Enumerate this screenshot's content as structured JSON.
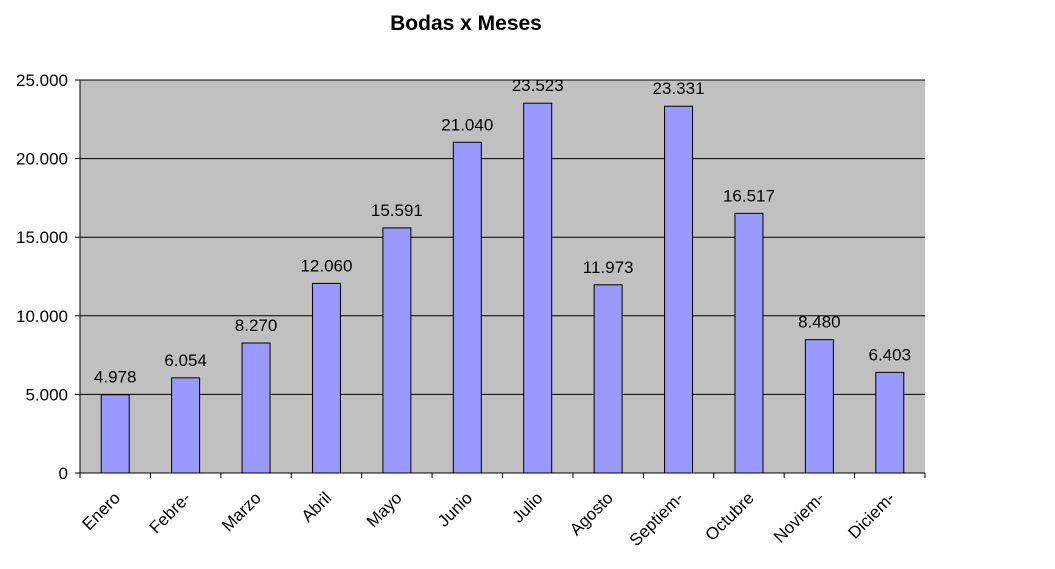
{
  "chart_data": {
    "type": "bar",
    "title": "Bodas x Meses",
    "categories": [
      "Enero",
      "Febre-",
      "Marzo",
      "Abril",
      "Mayo",
      "Junio",
      "Julio",
      "Agosto",
      "Septiem-",
      "Octubre",
      "Noviem-",
      "Diciem-"
    ],
    "values": [
      4978,
      6054,
      8270,
      12060,
      15591,
      21040,
      23523,
      11973,
      23331,
      16517,
      8480,
      6403
    ],
    "data_labels": [
      "4.978",
      "6.054",
      "8.270",
      "12.060",
      "15.591",
      "21.040",
      "23.523",
      "11.973",
      "23.331",
      "16.517",
      "8.480",
      "6.403"
    ],
    "y_ticks": [
      0,
      5000,
      10000,
      15000,
      20000,
      25000
    ],
    "y_tick_labels": [
      "0",
      "5.000",
      "10.000",
      "15.000",
      "20.000",
      "25.000"
    ],
    "ylim": [
      0,
      25000
    ],
    "xlabel": "",
    "ylabel": "",
    "grid": true,
    "legend": "none",
    "colors": {
      "bar_fill": "#9999ff",
      "bar_stroke": "#000000",
      "plot_background": "#c0c0c0",
      "gridline": "#000000"
    }
  }
}
